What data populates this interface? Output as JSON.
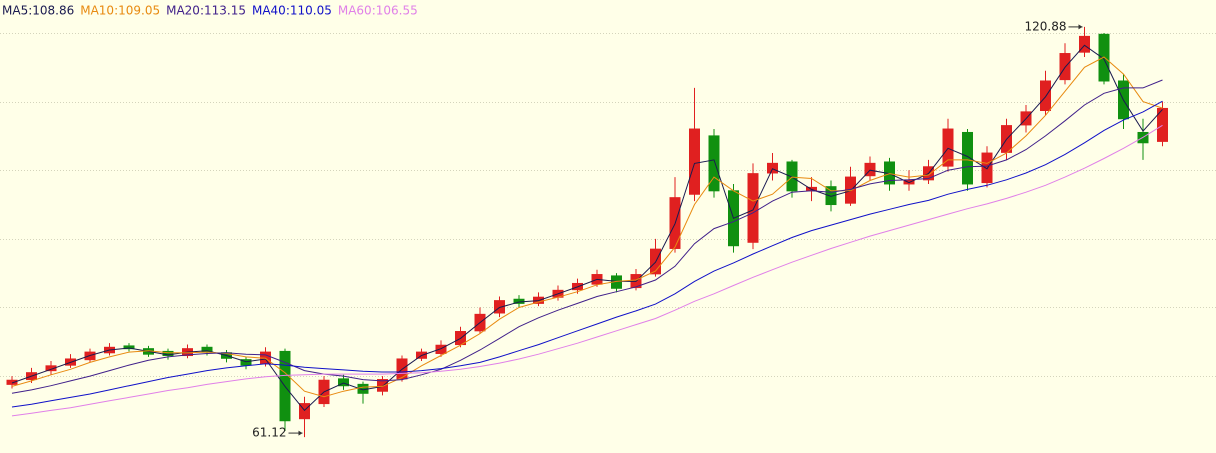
{
  "chart_data": {
    "type": "candlestick",
    "background": "#ffffe8",
    "up_color": "#e02020",
    "down_color": "#109010",
    "grid": true,
    "ylim": [
      58.8,
      124.8
    ],
    "grid_levels": [
      70,
      80,
      90,
      100,
      110,
      120
    ],
    "open": [
      68.8,
      69.5,
      70.8,
      71.6,
      72.4,
      73.4,
      74.4,
      74.0,
      73.6,
      73.0,
      74.2,
      73.4,
      72.4,
      71.8,
      73.6,
      63.8,
      66.0,
      69.6,
      68.8,
      67.8,
      69.6,
      72.6,
      73.3,
      74.6,
      76.6,
      79.2,
      81.2,
      80.6,
      81.5,
      82.6,
      83.4,
      84.6,
      82.9,
      84.9,
      88.6,
      96.5,
      105.0,
      97.0,
      89.5,
      99.6,
      101.2,
      97.0,
      97.6,
      95.2,
      99.2,
      101.2,
      98.0,
      98.6,
      100.6,
      105.5,
      98.2,
      102.6,
      106.6,
      108.7,
      113.2,
      117.2,
      119.8,
      113.0,
      105.5,
      104.2
    ],
    "high": [
      70.0,
      71.2,
      72.2,
      73.2,
      74.0,
      74.8,
      74.8,
      74.4,
      74.0,
      74.6,
      74.6,
      73.8,
      72.8,
      74.2,
      74.0,
      67.0,
      70.0,
      70.2,
      69.2,
      70.0,
      73.0,
      74.0,
      75.2,
      77.2,
      80.0,
      81.6,
      81.8,
      82.2,
      83.2,
      84.2,
      85.5,
      85.0,
      85.6,
      90.0,
      99.0,
      112.0,
      106.0,
      98.0,
      101.0,
      102.5,
      101.5,
      99.0,
      98.5,
      100.5,
      102.0,
      101.8,
      100.0,
      101.5,
      107.5,
      106.0,
      103.5,
      107.5,
      109.5,
      114.5,
      118.5,
      120.88,
      120.0,
      114.0,
      107.5,
      110.0
    ],
    "low": [
      68.2,
      69.0,
      70.2,
      71.2,
      72.0,
      73.0,
      73.6,
      72.8,
      72.4,
      72.6,
      73.0,
      72.0,
      71.0,
      71.4,
      62.0,
      61.12,
      65.5,
      68.0,
      66.0,
      67.2,
      69.2,
      72.2,
      72.8,
      74.2,
      76.2,
      78.6,
      80.0,
      80.2,
      81.0,
      82.0,
      83.0,
      82.2,
      82.5,
      84.5,
      88.0,
      95.5,
      96.0,
      88.0,
      88.5,
      98.5,
      96.0,
      95.5,
      94.0,
      94.8,
      98.5,
      97.0,
      97.0,
      98.0,
      99.8,
      97.0,
      97.5,
      101.5,
      105.5,
      108.0,
      112.5,
      116.5,
      112.5,
      106.0,
      101.5,
      103.5
    ],
    "close": [
      69.4,
      70.5,
      71.5,
      72.5,
      73.5,
      74.2,
      74.0,
      73.2,
      73.0,
      74.0,
      73.5,
      72.6,
      71.6,
      73.5,
      63.5,
      66.0,
      69.4,
      68.6,
      67.5,
      69.5,
      72.5,
      73.5,
      74.5,
      76.5,
      79.0,
      81.0,
      80.6,
      81.5,
      82.5,
      83.5,
      84.8,
      82.8,
      84.8,
      88.5,
      96.0,
      106.0,
      97.0,
      89.0,
      99.5,
      101.0,
      97.0,
      97.5,
      95.0,
      99.0,
      101.0,
      98.0,
      98.5,
      100.5,
      106.0,
      98.0,
      102.5,
      106.5,
      108.5,
      113.0,
      117.0,
      119.5,
      113.0,
      107.5,
      104.0,
      109.0
    ],
    "series": [
      {
        "name": "MA5:108.86",
        "color": "#1a1a50",
        "values": [
          69.0,
          70.0,
          71.0,
          72.0,
          73.0,
          73.8,
          74.1,
          73.6,
          73.1,
          73.5,
          73.7,
          73.0,
          72.1,
          72.5,
          68.5,
          65.0,
          67.7,
          69.0,
          68.0,
          68.5,
          71.0,
          73.0,
          74.0,
          75.5,
          77.8,
          80.0,
          80.8,
          81.0,
          82.0,
          83.0,
          84.1,
          83.8,
          83.8,
          86.6,
          92.2,
          101.0,
          101.5,
          93.0,
          94.2,
          100.2,
          99.0,
          97.2,
          96.2,
          97.0,
          100.0,
          99.5,
          98.2,
          99.5,
          103.2,
          102.0,
          100.2,
          104.5,
          107.5,
          110.7,
          115.0,
          118.2,
          116.2,
          110.2,
          105.7,
          108.86
        ]
      },
      {
        "name": "MA10:109.05",
        "color": "#e88a10",
        "values": [
          68.5,
          69.3,
          70.2,
          71.0,
          72.0,
          72.8,
          73.5,
          73.7,
          73.4,
          73.4,
          73.5,
          73.3,
          72.8,
          72.6,
          70.5,
          67.8,
          67.0,
          67.8,
          68.4,
          68.5,
          69.8,
          71.5,
          73.0,
          74.5,
          76.2,
          78.3,
          80.0,
          80.8,
          81.5,
          82.3,
          83.3,
          83.8,
          84.0,
          85.3,
          88.8,
          95.0,
          99.0,
          97.0,
          95.5,
          96.5,
          99.0,
          98.8,
          97.0,
          97.0,
          98.5,
          99.5,
          99.0,
          99.3,
          101.5,
          101.5,
          101.0,
          102.5,
          105.0,
          108.0,
          111.5,
          115.0,
          116.5,
          114.0,
          110.0,
          109.05
        ]
      },
      {
        "name": "MA20:113.15",
        "color": "#40208a",
        "values": [
          67.5,
          68.0,
          68.6,
          69.3,
          70.0,
          70.8,
          71.6,
          72.3,
          72.8,
          73.1,
          73.3,
          73.4,
          73.2,
          73.1,
          72.0,
          70.8,
          70.3,
          70.0,
          69.5,
          69.3,
          69.5,
          70.2,
          71.0,
          72.3,
          73.8,
          75.5,
          77.2,
          78.5,
          79.6,
          80.6,
          81.6,
          82.3,
          83.0,
          84.0,
          86.0,
          89.3,
          91.5,
          92.5,
          93.8,
          95.5,
          96.8,
          97.0,
          96.8,
          97.2,
          98.0,
          98.5,
          98.6,
          98.8,
          100.0,
          100.5,
          100.6,
          101.5,
          103.0,
          105.0,
          107.2,
          109.5,
          111.2,
          112.0,
          112.0,
          113.15
        ]
      },
      {
        "name": "MA40:110.05",
        "color": "#1010c8",
        "values": [
          65.5,
          65.9,
          66.4,
          66.9,
          67.4,
          68.0,
          68.6,
          69.2,
          69.8,
          70.3,
          70.8,
          71.2,
          71.5,
          71.8,
          71.6,
          71.3,
          71.1,
          70.9,
          70.7,
          70.6,
          70.6,
          70.8,
          71.1,
          71.5,
          72.0,
          72.8,
          73.7,
          74.6,
          75.6,
          76.6,
          77.6,
          78.6,
          79.5,
          80.5,
          82.0,
          83.8,
          85.3,
          86.5,
          87.8,
          89.0,
          90.2,
          91.2,
          92.0,
          92.8,
          93.6,
          94.3,
          95.0,
          95.6,
          96.5,
          97.2,
          97.8,
          98.6,
          99.6,
          100.8,
          102.3,
          104.0,
          105.8,
          107.3,
          108.5,
          110.05
        ]
      },
      {
        "name": "MA60:106.55",
        "color": "#e080e8",
        "values": [
          64.2,
          64.6,
          65.0,
          65.4,
          65.9,
          66.4,
          66.9,
          67.4,
          67.9,
          68.3,
          68.8,
          69.2,
          69.6,
          69.9,
          70.1,
          70.2,
          70.3,
          70.3,
          70.3,
          70.3,
          70.4,
          70.5,
          70.7,
          71.0,
          71.4,
          71.9,
          72.5,
          73.2,
          74.0,
          74.8,
          75.7,
          76.6,
          77.5,
          78.4,
          79.6,
          80.9,
          82.0,
          83.2,
          84.4,
          85.5,
          86.6,
          87.6,
          88.6,
          89.5,
          90.4,
          91.2,
          92.0,
          92.8,
          93.6,
          94.4,
          95.1,
          95.9,
          96.8,
          97.8,
          99.0,
          100.3,
          101.7,
          103.2,
          104.8,
          106.55
        ]
      }
    ],
    "annotations": [
      {
        "text": "120.88",
        "index": 55,
        "at": "high"
      },
      {
        "text": "61.12",
        "index": 15,
        "at": "low"
      }
    ]
  }
}
